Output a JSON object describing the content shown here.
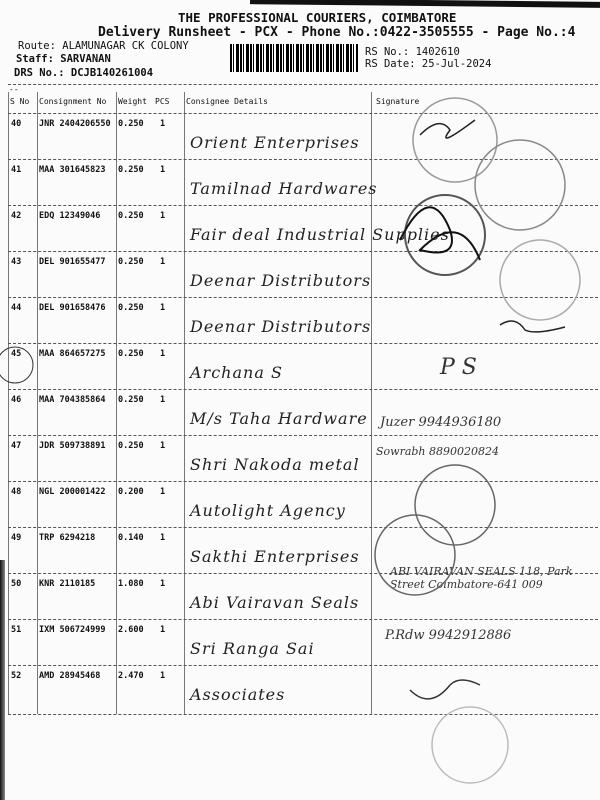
{
  "header": {
    "title": "THE PROFESSIONAL COURIERS, COIMBATORE",
    "subtitle": "Delivery Runsheet - PCX - Phone No.:0422-3505555 - Page No.:4",
    "route": "Route: ALAMUNAGAR CK COLONY",
    "staff": "Staff: SARVANAN",
    "drs": "DRS No.: DCJB140261004",
    "rs_no": "RS No.: 1402610",
    "rs_date": "RS Date: 25-Jul-2024"
  },
  "columns": [
    "S No",
    "Consignment No",
    "Weight",
    "PCS",
    "Consignee Details",
    "Signature"
  ],
  "rows": [
    {
      "sno": "40",
      "cn": "JNR 2404206550",
      "weight": "0.250",
      "pcs": "1",
      "consignee": "Orient Enterprises",
      "signature": ""
    },
    {
      "sno": "41",
      "cn": "MAA 301645823",
      "weight": "0.250",
      "pcs": "1",
      "consignee": "Tamilnad Hardwares",
      "signature": ""
    },
    {
      "sno": "42",
      "cn": "EDQ 12349046",
      "weight": "0.250",
      "pcs": "1",
      "consignee": "Fair deal Industrial Supplies",
      "signature": ""
    },
    {
      "sno": "43",
      "cn": "DEL 901655477",
      "weight": "0.250",
      "pcs": "1",
      "consignee": "Deenar Distributors",
      "signature": ""
    },
    {
      "sno": "44",
      "cn": "DEL 901658476",
      "weight": "0.250",
      "pcs": "1",
      "consignee": "Deenar Distributors",
      "signature": ""
    },
    {
      "sno": "45",
      "cn": "MAA 864657275",
      "weight": "0.250",
      "pcs": "1",
      "consignee": "Archana S",
      "signature": "P S"
    },
    {
      "sno": "46",
      "cn": "MAA 704385864",
      "weight": "0.250",
      "pcs": "1",
      "consignee": "M/s Taha Hardware",
      "signature": "Juzer 9944936180"
    },
    {
      "sno": "47",
      "cn": "JDR 509738891",
      "weight": "0.250",
      "pcs": "1",
      "consignee": "Shri Nakoda metal",
      "signature": "Sowrabh 8890020824"
    },
    {
      "sno": "48",
      "cn": "NGL 200001422",
      "weight": "0.200",
      "pcs": "1",
      "consignee": "Autolight Agency",
      "signature": ""
    },
    {
      "sno": "49",
      "cn": "TRP 6294218",
      "weight": "0.140",
      "pcs": "1",
      "consignee": "Sakthi Enterprises",
      "signature": ""
    },
    {
      "sno": "50",
      "cn": "KNR 2110185",
      "weight": "1.080",
      "pcs": "1",
      "consignee": "Abi Vairavan Seals",
      "signature": "ABI VAIRAVAN SEALS 118, Park Street Coimbatore-641 009"
    },
    {
      "sno": "51",
      "cn": "IXM 506724999",
      "weight": "2.600",
      "pcs": "1",
      "consignee": "Sri Ranga Sai",
      "signature": "P.Rdw 9942912886"
    },
    {
      "sno": "52",
      "cn": "AMD 28945468",
      "weight": "2.470",
      "pcs": "1",
      "consignee": "Associates",
      "signature": ""
    }
  ]
}
